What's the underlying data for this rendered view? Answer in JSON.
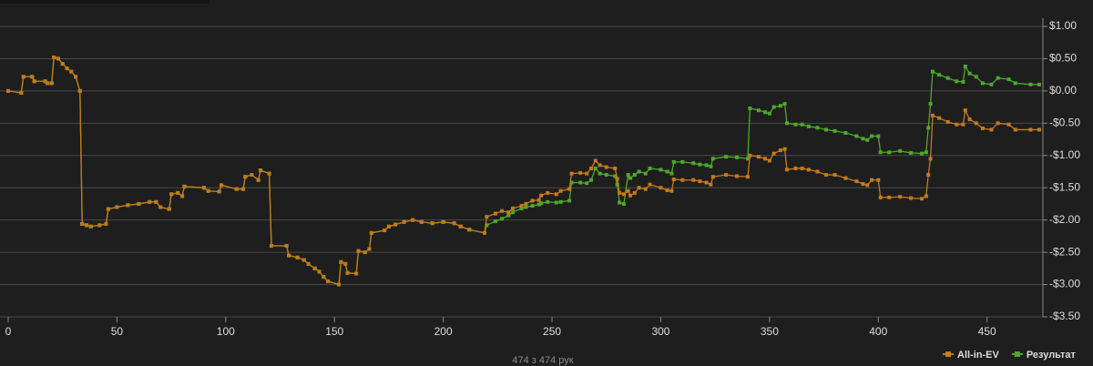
{
  "chart_data": {
    "type": "line",
    "x": [
      0,
      6,
      7,
      11,
      12,
      17,
      18,
      20,
      21,
      23,
      25,
      27,
      29,
      31,
      33,
      34,
      36,
      38,
      42,
      45,
      46,
      50,
      55,
      60,
      65,
      68,
      70,
      74,
      75,
      78,
      80,
      81,
      90,
      92,
      97,
      98,
      105,
      108,
      109,
      112,
      115,
      116,
      120,
      121,
      128,
      129,
      133,
      136,
      138,
      141,
      143,
      145,
      147,
      152,
      153,
      155,
      156,
      160,
      161,
      164,
      166,
      167,
      173,
      175,
      178,
      182,
      186,
      190,
      195,
      200,
      205,
      208,
      212,
      219,
      220,
      224,
      227,
      230,
      232,
      236,
      238,
      241,
      244,
      245,
      248,
      252,
      254,
      258,
      259,
      263,
      266,
      268,
      270,
      272,
      275,
      279,
      280,
      281,
      283,
      285,
      286,
      288,
      290,
      293,
      295,
      300,
      303,
      305,
      306,
      310,
      315,
      318,
      321,
      323,
      324,
      330,
      335,
      340,
      341,
      345,
      348,
      350,
      352,
      355,
      357,
      358,
      362,
      365,
      368,
      372,
      376,
      380,
      385,
      390,
      393,
      395,
      397,
      400,
      401,
      405,
      410,
      415,
      420,
      422,
      423,
      424,
      425,
      428,
      432,
      436,
      439,
      440,
      442,
      445,
      448,
      452,
      455,
      460,
      463,
      470,
      474
    ],
    "series": [
      {
        "name": "Результат",
        "color": "#4ea82a",
        "values": [
          0,
          -0.03,
          0.22,
          0.22,
          0.15,
          0.15,
          0.12,
          0.12,
          0.52,
          0.5,
          0.42,
          0.35,
          0.3,
          0.22,
          0,
          -2.06,
          -2.08,
          -2.1,
          -2.08,
          -2.06,
          -1.83,
          -1.8,
          -1.77,
          -1.75,
          -1.72,
          -1.72,
          -1.8,
          -1.83,
          -1.6,
          -1.58,
          -1.63,
          -1.48,
          -1.5,
          -1.55,
          -1.56,
          -1.46,
          -1.52,
          -1.52,
          -1.33,
          -1.3,
          -1.38,
          -1.23,
          -1.28,
          -2.4,
          -2.4,
          -2.55,
          -2.58,
          -2.62,
          -2.68,
          -2.75,
          -2.8,
          -2.88,
          -2.95,
          -3.0,
          -2.65,
          -2.68,
          -2.82,
          -2.83,
          -2.48,
          -2.5,
          -2.45,
          -2.2,
          -2.16,
          -2.1,
          -2.07,
          -2.03,
          -2.0,
          -2.03,
          -2.05,
          -2.03,
          -2.05,
          -2.1,
          -2.15,
          -2.2,
          -2.08,
          -2.02,
          -1.98,
          -1.93,
          -1.88,
          -1.82,
          -1.8,
          -1.78,
          -1.76,
          -1.74,
          -1.72,
          -1.73,
          -1.72,
          -1.7,
          -1.42,
          -1.42,
          -1.43,
          -1.38,
          -1.2,
          -1.28,
          -1.3,
          -1.32,
          -1.45,
          -1.73,
          -1.75,
          -1.3,
          -1.35,
          -1.3,
          -1.25,
          -1.28,
          -1.2,
          -1.22,
          -1.25,
          -1.28,
          -1.1,
          -1.1,
          -1.12,
          -1.14,
          -1.15,
          -1.17,
          -1.05,
          -1.02,
          -1.03,
          -1.05,
          -0.27,
          -0.3,
          -0.33,
          -0.35,
          -0.25,
          -0.23,
          -0.2,
          -0.5,
          -0.52,
          -0.52,
          -0.55,
          -0.57,
          -0.6,
          -0.62,
          -0.65,
          -0.7,
          -0.74,
          -0.76,
          -0.7,
          -0.7,
          -0.95,
          -0.95,
          -0.93,
          -0.96,
          -0.97,
          -0.95,
          -0.57,
          -0.2,
          0.3,
          0.25,
          0.2,
          0.15,
          0.14,
          0.38,
          0.27,
          0.22,
          0.12,
          0.1,
          0.2,
          0.18,
          0.12,
          0.1,
          0.1
        ]
      },
      {
        "name": "All-in-EV",
        "color": "#c47a1c",
        "values": [
          0,
          -0.03,
          0.22,
          0.22,
          0.15,
          0.15,
          0.12,
          0.12,
          0.52,
          0.5,
          0.42,
          0.35,
          0.3,
          0.22,
          0,
          -2.06,
          -2.08,
          -2.1,
          -2.08,
          -2.06,
          -1.83,
          -1.8,
          -1.77,
          -1.75,
          -1.72,
          -1.72,
          -1.8,
          -1.83,
          -1.6,
          -1.58,
          -1.63,
          -1.48,
          -1.5,
          -1.55,
          -1.56,
          -1.46,
          -1.52,
          -1.52,
          -1.33,
          -1.3,
          -1.38,
          -1.23,
          -1.28,
          -2.4,
          -2.4,
          -2.55,
          -2.58,
          -2.62,
          -2.68,
          -2.75,
          -2.8,
          -2.88,
          -2.95,
          -3.0,
          -2.65,
          -2.68,
          -2.82,
          -2.83,
          -2.48,
          -2.5,
          -2.45,
          -2.2,
          -2.16,
          -2.1,
          -2.07,
          -2.03,
          -2.0,
          -2.03,
          -2.05,
          -2.03,
          -2.05,
          -2.1,
          -2.15,
          -2.2,
          -1.95,
          -1.9,
          -1.86,
          -1.88,
          -1.82,
          -1.78,
          -1.75,
          -1.7,
          -1.69,
          -1.62,
          -1.58,
          -1.6,
          -1.55,
          -1.52,
          -1.28,
          -1.27,
          -1.28,
          -1.2,
          -1.08,
          -1.15,
          -1.18,
          -1.2,
          -1.36,
          -1.58,
          -1.6,
          -1.55,
          -1.62,
          -1.58,
          -1.5,
          -1.52,
          -1.45,
          -1.5,
          -1.54,
          -1.55,
          -1.37,
          -1.38,
          -1.38,
          -1.4,
          -1.42,
          -1.45,
          -1.33,
          -1.3,
          -1.32,
          -1.33,
          -1.0,
          -1.02,
          -1.05,
          -1.08,
          -0.97,
          -0.92,
          -0.9,
          -1.22,
          -1.2,
          -1.2,
          -1.22,
          -1.25,
          -1.3,
          -1.3,
          -1.35,
          -1.4,
          -1.44,
          -1.46,
          -1.38,
          -1.38,
          -1.65,
          -1.65,
          -1.64,
          -1.66,
          -1.67,
          -1.63,
          -1.3,
          -1.05,
          -0.38,
          -0.42,
          -0.48,
          -0.52,
          -0.52,
          -0.3,
          -0.44,
          -0.5,
          -0.58,
          -0.6,
          -0.5,
          -0.52,
          -0.6,
          -0.6,
          -0.6
        ]
      }
    ],
    "legend_order": [
      "All-in-EV",
      "Результат"
    ],
    "xlim": [
      0,
      474
    ],
    "xticks": [
      0,
      50,
      100,
      150,
      200,
      250,
      300,
      350,
      400,
      450
    ],
    "ylim": [
      -3.5,
      1.0
    ],
    "yticks": [
      {
        "value": 1.0,
        "label": "$1.00"
      },
      {
        "value": 0.5,
        "label": "$0.50"
      },
      {
        "value": 0,
        "label": "$0.00"
      },
      {
        "value": -0.5,
        "label": "-$0.50"
      },
      {
        "value": -1.0,
        "label": "-$1.00"
      },
      {
        "value": -1.5,
        "label": "-$1.50"
      },
      {
        "value": -2.0,
        "label": "-$2.00"
      },
      {
        "value": -2.5,
        "label": "-$2.50"
      },
      {
        "value": -3.0,
        "label": "-$3.00"
      },
      {
        "value": -3.5,
        "label": "-$3.50"
      }
    ],
    "grid": true
  },
  "footer": "474 з 474 рук"
}
